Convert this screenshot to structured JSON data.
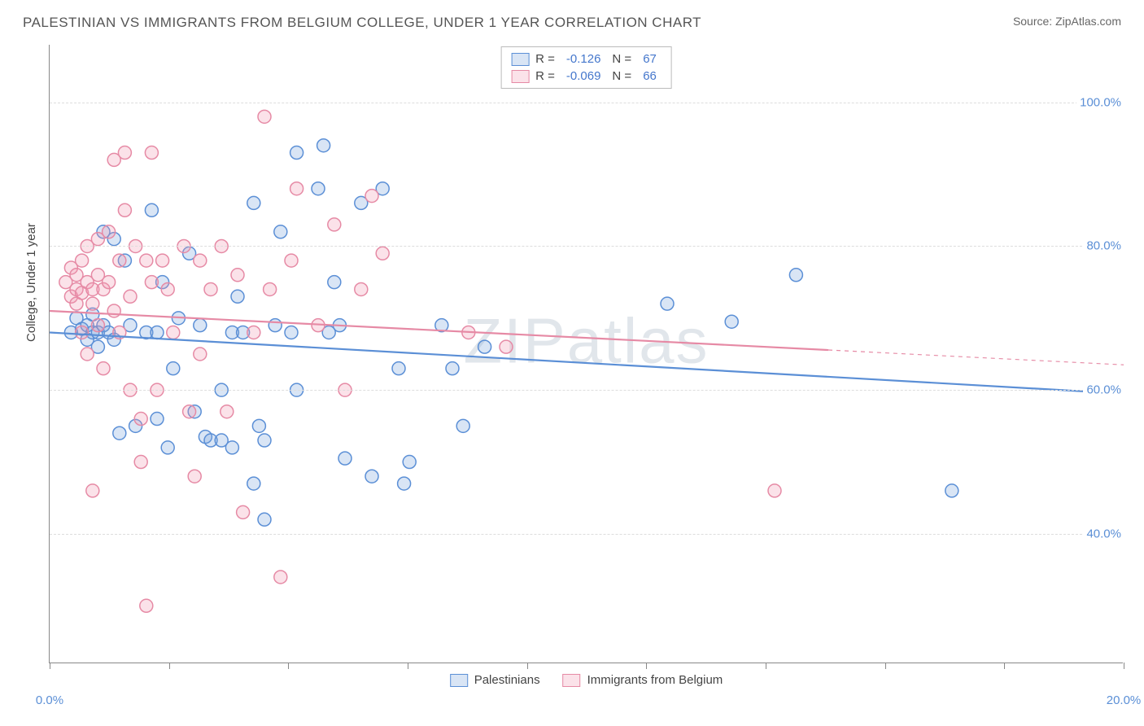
{
  "header": {
    "title": "PALESTINIAN VS IMMIGRANTS FROM BELGIUM COLLEGE, UNDER 1 YEAR CORRELATION CHART",
    "source": "Source: ZipAtlas.com"
  },
  "watermark": "ZIPatlas",
  "chart": {
    "type": "scatter",
    "y_axis_title": "College, Under 1 year",
    "xlim": [
      0,
      20
    ],
    "ylim": [
      22,
      108
    ],
    "x_ticks": [
      0,
      2.22,
      4.44,
      6.67,
      8.89,
      11.11,
      13.33,
      15.56,
      17.78,
      20
    ],
    "x_labels_shown": {
      "0": "0.0%",
      "20": "20.0%"
    },
    "y_gridlines": [
      40,
      60,
      80,
      100
    ],
    "y_labels": {
      "40": "40.0%",
      "60": "60.0%",
      "80": "80.0%",
      "100": "100.0%"
    },
    "background_color": "#ffffff",
    "grid_color": "#dddddd",
    "marker_radius": 8,
    "marker_stroke_width": 1.5,
    "marker_fill_opacity": 0.25,
    "line_width": 2.2,
    "series": [
      {
        "name": "Palestinians",
        "color": "#5b8fd6",
        "fill": "rgba(120,160,220,0.28)",
        "R": "-0.126",
        "N": "67",
        "trend": {
          "x1": 0,
          "y1": 68,
          "x2": 20,
          "y2": 59.5,
          "solid_until": 20
        },
        "points": [
          [
            0.4,
            68
          ],
          [
            0.5,
            70
          ],
          [
            0.6,
            68.5
          ],
          [
            0.7,
            69
          ],
          [
            0.7,
            67
          ],
          [
            0.8,
            68
          ],
          [
            0.8,
            70.5
          ],
          [
            0.9,
            68
          ],
          [
            0.9,
            66
          ],
          [
            1.0,
            69
          ],
          [
            1.0,
            82
          ],
          [
            1.1,
            68
          ],
          [
            1.2,
            67
          ],
          [
            1.2,
            81
          ],
          [
            1.3,
            54
          ],
          [
            1.4,
            78
          ],
          [
            1.5,
            69
          ],
          [
            1.6,
            55
          ],
          [
            1.8,
            68
          ],
          [
            1.9,
            85
          ],
          [
            2.0,
            56
          ],
          [
            2.0,
            68
          ],
          [
            2.1,
            75
          ],
          [
            2.2,
            52
          ],
          [
            2.3,
            63
          ],
          [
            2.4,
            70
          ],
          [
            2.6,
            79
          ],
          [
            2.7,
            57
          ],
          [
            2.8,
            69
          ],
          [
            2.9,
            53.5
          ],
          [
            3.0,
            53
          ],
          [
            3.2,
            53
          ],
          [
            3.2,
            60
          ],
          [
            3.4,
            68
          ],
          [
            3.4,
            52
          ],
          [
            3.5,
            73
          ],
          [
            3.6,
            68
          ],
          [
            3.8,
            47
          ],
          [
            3.8,
            86
          ],
          [
            3.9,
            55
          ],
          [
            4.0,
            53
          ],
          [
            4.0,
            42
          ],
          [
            4.2,
            69
          ],
          [
            4.3,
            82
          ],
          [
            4.5,
            68
          ],
          [
            4.6,
            60
          ],
          [
            4.6,
            93
          ],
          [
            5.0,
            88
          ],
          [
            5.1,
            94
          ],
          [
            5.2,
            68
          ],
          [
            5.3,
            75
          ],
          [
            5.4,
            69
          ],
          [
            5.5,
            50.5
          ],
          [
            5.8,
            86
          ],
          [
            6.0,
            48
          ],
          [
            6.2,
            88
          ],
          [
            6.5,
            63
          ],
          [
            6.6,
            47
          ],
          [
            6.7,
            50
          ],
          [
            7.3,
            69
          ],
          [
            7.5,
            63
          ],
          [
            7.7,
            55
          ],
          [
            8.1,
            66
          ],
          [
            11.5,
            72
          ],
          [
            12.7,
            69.5
          ],
          [
            13.9,
            76
          ],
          [
            16.8,
            46
          ]
        ]
      },
      {
        "name": "Immigrants from Belgium",
        "color": "#e68aa5",
        "fill": "rgba(240,150,175,0.28)",
        "R": "-0.069",
        "N": "66",
        "trend": {
          "x1": 0,
          "y1": 71,
          "x2": 20,
          "y2": 63.5,
          "solid_until": 14.5
        },
        "points": [
          [
            0.3,
            75
          ],
          [
            0.4,
            73
          ],
          [
            0.4,
            77
          ],
          [
            0.5,
            74
          ],
          [
            0.5,
            72
          ],
          [
            0.5,
            76
          ],
          [
            0.6,
            68
          ],
          [
            0.6,
            78
          ],
          [
            0.6,
            73.5
          ],
          [
            0.7,
            75
          ],
          [
            0.7,
            65
          ],
          [
            0.7,
            80
          ],
          [
            0.8,
            74
          ],
          [
            0.8,
            72
          ],
          [
            0.8,
            46
          ],
          [
            0.9,
            81
          ],
          [
            0.9,
            76
          ],
          [
            0.9,
            69
          ],
          [
            1.0,
            74
          ],
          [
            1.0,
            63
          ],
          [
            1.1,
            82
          ],
          [
            1.1,
            75
          ],
          [
            1.2,
            71
          ],
          [
            1.2,
            92
          ],
          [
            1.3,
            78
          ],
          [
            1.3,
            68
          ],
          [
            1.4,
            85
          ],
          [
            1.4,
            93
          ],
          [
            1.5,
            73
          ],
          [
            1.5,
            60
          ],
          [
            1.6,
            80
          ],
          [
            1.7,
            50
          ],
          [
            1.7,
            56
          ],
          [
            1.8,
            78
          ],
          [
            1.8,
            30
          ],
          [
            1.9,
            75
          ],
          [
            1.9,
            93
          ],
          [
            2.0,
            60
          ],
          [
            2.1,
            78
          ],
          [
            2.2,
            74
          ],
          [
            2.3,
            68
          ],
          [
            2.5,
            80
          ],
          [
            2.6,
            57
          ],
          [
            2.7,
            48
          ],
          [
            2.8,
            65
          ],
          [
            2.8,
            78
          ],
          [
            3.0,
            74
          ],
          [
            3.2,
            80
          ],
          [
            3.3,
            57
          ],
          [
            3.5,
            76
          ],
          [
            3.6,
            43
          ],
          [
            3.8,
            68
          ],
          [
            4.0,
            98
          ],
          [
            4.1,
            74
          ],
          [
            4.3,
            34
          ],
          [
            4.5,
            78
          ],
          [
            4.6,
            88
          ],
          [
            5.0,
            69
          ],
          [
            5.3,
            83
          ],
          [
            5.5,
            60
          ],
          [
            5.8,
            74
          ],
          [
            6.0,
            87
          ],
          [
            6.2,
            79
          ],
          [
            7.8,
            68
          ],
          [
            8.5,
            66
          ],
          [
            13.5,
            46
          ]
        ]
      }
    ],
    "legend_top_labels": {
      "R": "R =",
      "N": "N ="
    },
    "legend_bottom": [
      "Palestinians",
      "Immigrants from Belgium"
    ]
  }
}
